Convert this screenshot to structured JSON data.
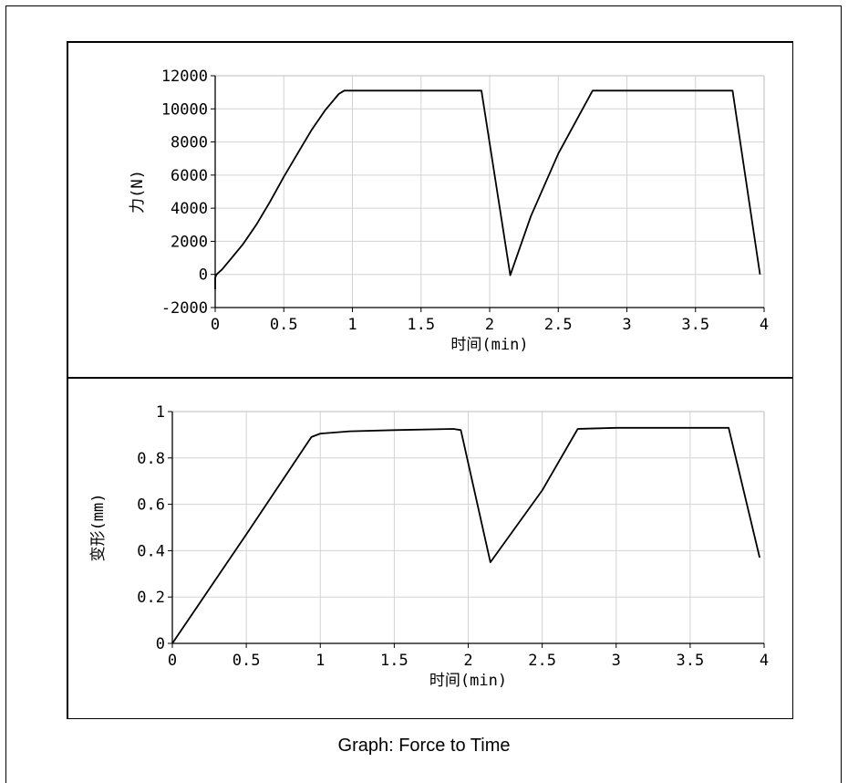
{
  "caption": "Graph: Force to Time",
  "chart_data": [
    {
      "type": "line",
      "xlabel": "时间(min)",
      "ylabel": "力(N)",
      "xlim": [
        0,
        4
      ],
      "ylim": [
        -2000,
        12000
      ],
      "xticks": [
        0,
        0.5,
        1,
        1.5,
        2,
        2.5,
        3,
        3.5,
        4
      ],
      "xtick_labels": [
        "0",
        "0.5",
        "1",
        "1.5",
        "2",
        "2.5",
        "3",
        "3.5",
        "4"
      ],
      "yticks": [
        -2000,
        0,
        2000,
        4000,
        6000,
        8000,
        10000,
        12000
      ],
      "ytick_labels": [
        "-2000",
        "0",
        "2000",
        "4000",
        "6000",
        "8000",
        "10000",
        "12000"
      ],
      "grid": true,
      "line_color": "#000000",
      "series": [
        {
          "x": [
            0,
            0,
            0.01,
            0.05,
            0.1,
            0.2,
            0.3,
            0.4,
            0.5,
            0.6,
            0.7,
            0.8,
            0.9,
            0.94,
            1.0,
            1.5,
            1.94,
            2.15,
            2.3,
            2.5,
            2.75,
            3.0,
            3.5,
            3.77,
            3.97
          ],
          "y": [
            -900,
            -200,
            0,
            300,
            800,
            1800,
            3000,
            4400,
            5900,
            7300,
            8700,
            9900,
            10900,
            11100,
            11100,
            11100,
            11100,
            -50,
            3500,
            7300,
            11100,
            11100,
            11100,
            11100,
            0
          ]
        }
      ]
    },
    {
      "type": "line",
      "xlabel": "时间(min)",
      "ylabel": "变形(mm)",
      "xlim": [
        0,
        4
      ],
      "ylim": [
        0,
        1
      ],
      "xticks": [
        0,
        0.5,
        1,
        1.5,
        2,
        2.5,
        3,
        3.5,
        4
      ],
      "xtick_labels": [
        "0",
        "0.5",
        "1",
        "1.5",
        "2",
        "2.5",
        "3",
        "3.5",
        "4"
      ],
      "yticks": [
        0,
        0.2,
        0.4,
        0.6,
        0.8,
        1
      ],
      "ytick_labels": [
        "0",
        "0.2",
        "0.4",
        "0.6",
        "0.8",
        "1"
      ],
      "grid": true,
      "line_color": "#000000",
      "series": [
        {
          "x": [
            0,
            0.5,
            0.94,
            1.0,
            1.2,
            1.5,
            1.9,
            1.95,
            2.15,
            2.5,
            2.74,
            3.0,
            3.5,
            3.76,
            3.97
          ],
          "y": [
            0,
            0.47,
            0.89,
            0.905,
            0.915,
            0.92,
            0.925,
            0.92,
            0.35,
            0.66,
            0.925,
            0.93,
            0.93,
            0.93,
            0.37
          ]
        }
      ]
    }
  ]
}
